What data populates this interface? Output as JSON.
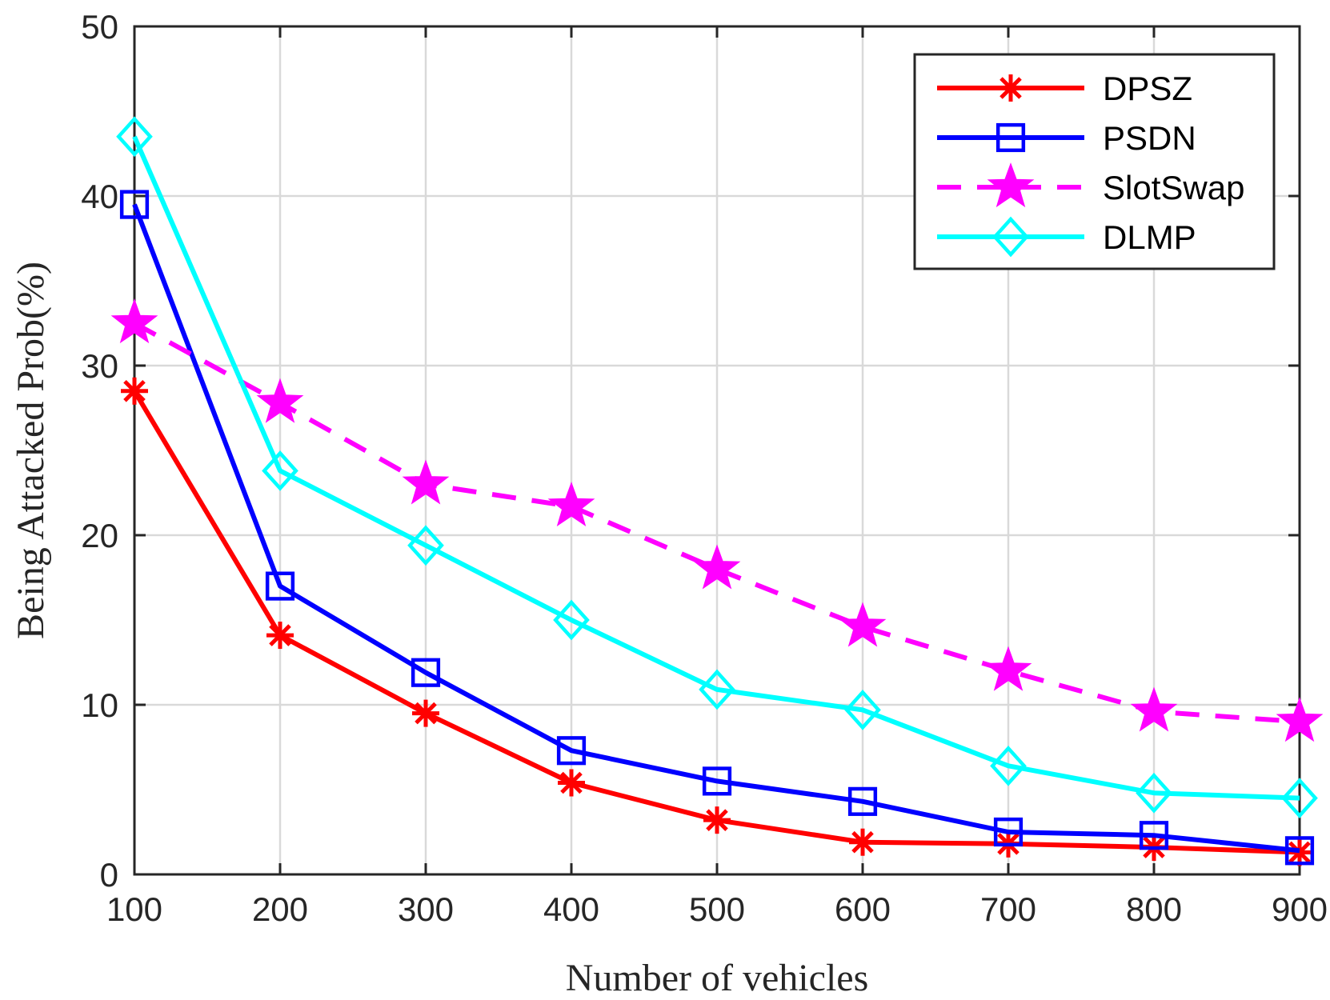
{
  "chart_data": {
    "type": "line",
    "xlabel": "Number of vehicles",
    "ylabel": "Being Attacked Prob(%)",
    "x": [
      100,
      200,
      300,
      400,
      500,
      600,
      700,
      800,
      900
    ],
    "xlim": [
      100,
      900
    ],
    "ylim": [
      0,
      50
    ],
    "xticks": [
      "100",
      "200",
      "300",
      "400",
      "500",
      "600",
      "700",
      "800",
      "900"
    ],
    "yticks": [
      "0",
      "10",
      "20",
      "30",
      "40",
      "50"
    ],
    "grid": true,
    "legend_position": "top-right",
    "series": [
      {
        "name": "DPSZ",
        "color": "#ff0000",
        "line": "solid",
        "marker": "asterisk",
        "values": [
          28.5,
          14.1,
          9.5,
          5.4,
          3.2,
          1.9,
          1.8,
          1.6,
          1.3
        ]
      },
      {
        "name": "PSDN",
        "color": "#0000ff",
        "line": "solid",
        "marker": "square",
        "values": [
          39.5,
          17.0,
          11.9,
          7.3,
          5.5,
          4.3,
          2.5,
          2.3,
          1.4
        ]
      },
      {
        "name": "SlotSwap",
        "color": "#ff00ff",
        "line": "dashed",
        "marker": "pentagram",
        "values": [
          32.5,
          27.8,
          23.0,
          21.7,
          18.0,
          14.6,
          12.0,
          9.6,
          9.0
        ]
      },
      {
        "name": "DLMP",
        "color": "#00ffff",
        "line": "solid",
        "marker": "diamond",
        "values": [
          43.5,
          23.8,
          19.4,
          15.0,
          10.9,
          9.7,
          6.4,
          4.8,
          4.5
        ]
      }
    ]
  }
}
